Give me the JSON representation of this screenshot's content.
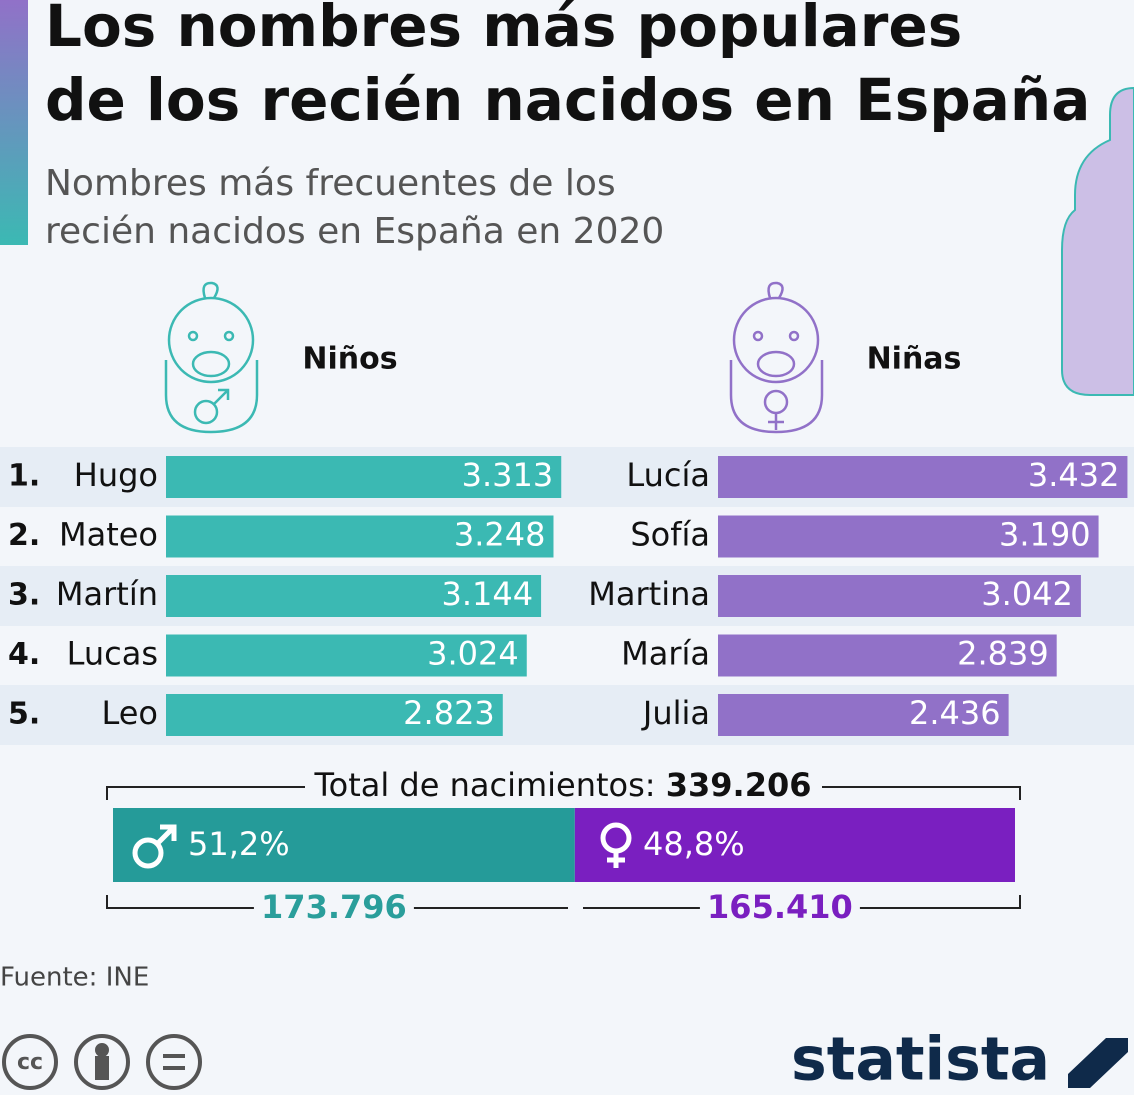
{
  "title": "Los nombres más populares de los recién nacidos en España",
  "subtitle": "Nombres más frecuentes de los recién nacidos en España en 2020",
  "chart_data": [
    {
      "type": "hbar",
      "title": "Niños",
      "ranks": [
        "1.",
        "2.",
        "3.",
        "4.",
        "5."
      ],
      "categories": [
        "Hugo",
        "Mateo",
        "Martín",
        "Lucas",
        "Leo"
      ],
      "values": [
        3313,
        3248,
        3144,
        3024,
        2823
      ],
      "value_labels": [
        "3.313",
        "3.248",
        "3.144",
        "3.024",
        "2.823"
      ],
      "color": "#3bb9b3"
    },
    {
      "type": "hbar",
      "title": "Niñas",
      "categories": [
        "Lucía",
        "Sofía",
        "Martina",
        "María",
        "Julia"
      ],
      "values": [
        3432,
        3190,
        3042,
        2839,
        2436
      ],
      "value_labels": [
        "3.432",
        "3.190",
        "3.042",
        "2.839",
        "2.436"
      ],
      "color": "#9171c8"
    },
    {
      "type": "split",
      "title": "Total de nacimientos:",
      "total": 339206,
      "total_label": "339.206",
      "values": [
        51.2,
        48.8
      ],
      "value_labels": [
        "51,2%",
        "48,8%"
      ],
      "counts": [
        173796,
        165410
      ],
      "count_labels": [
        "173.796",
        "165.410"
      ],
      "colors": [
        "#259b99",
        "#7a1fc0"
      ],
      "count_colors": [
        "#2a9e9b",
        "#7a1fc0"
      ]
    }
  ],
  "source": "Fuente: INE",
  "license_icon_text": "cc",
  "brand": "statista"
}
